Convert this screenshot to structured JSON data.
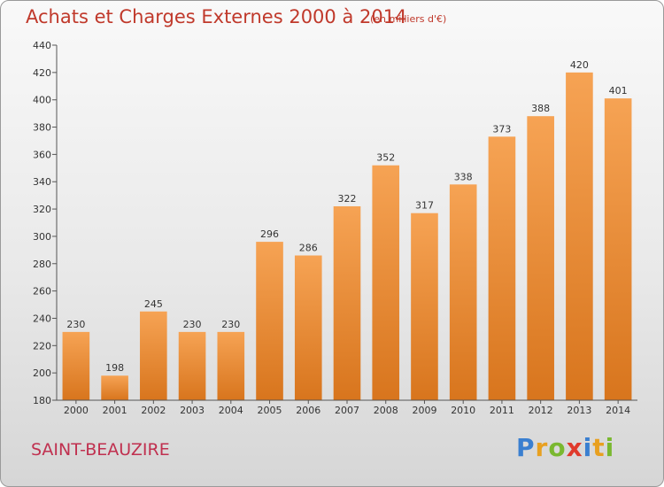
{
  "title": "Achats et Charges Externes 2000 à 2014",
  "subtitle": "(en milliers d'€)",
  "commune": "SAINT-BEAUZIRE",
  "logo": {
    "letters": [
      "P",
      "r",
      "o",
      "x",
      "i",
      "t",
      "i"
    ],
    "colors": [
      "#3a7fd0",
      "#e8a020",
      "#7ab830",
      "#e03a2c",
      "#3a7fd0",
      "#e8a020",
      "#7ab830"
    ]
  },
  "colors": {
    "bar_top": "#f6a354",
    "bar_bottom": "#d8751d",
    "text": "#333333"
  },
  "chart_data": {
    "type": "bar",
    "categories": [
      "2000",
      "2001",
      "2002",
      "2003",
      "2004",
      "2005",
      "2006",
      "2007",
      "2008",
      "2009",
      "2010",
      "2011",
      "2012",
      "2013",
      "2014"
    ],
    "values": [
      230,
      198,
      245,
      230,
      230,
      296,
      286,
      322,
      352,
      317,
      338,
      373,
      388,
      420,
      401
    ],
    "ylim": [
      180,
      440
    ],
    "yticks": [
      180,
      200,
      220,
      240,
      260,
      280,
      300,
      320,
      340,
      360,
      380,
      400,
      420,
      440
    ],
    "grid": false,
    "legend": "none"
  }
}
